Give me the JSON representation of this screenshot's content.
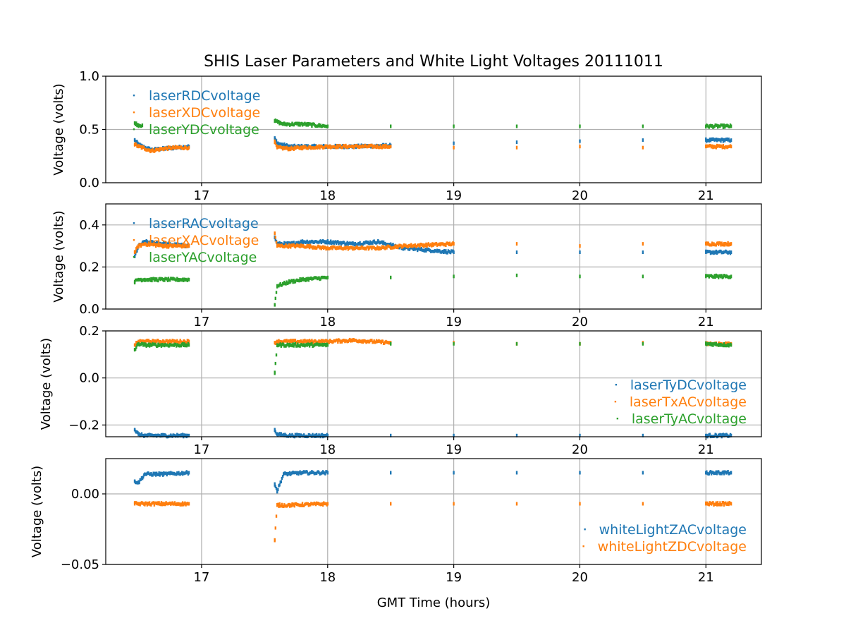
{
  "chart_data": {
    "type": "scatter",
    "title": "SHIS Laser Parameters and White Light Voltages 20111011",
    "xlabel": "GMT Time (hours)",
    "xlim": [
      16.24,
      21.44
    ],
    "xticks": [
      17,
      18,
      19,
      20,
      21
    ],
    "colors": {
      "blue": "#1f77b4",
      "orange": "#ff7f0e",
      "green": "#2ca02c"
    },
    "panels": [
      {
        "ylabel": "Voltage (volts)",
        "ylim": [
          0.0,
          1.0
        ],
        "yticks": [
          0.0,
          0.5,
          1.0
        ],
        "ytick_labels": [
          "0.0",
          "0.5",
          "1.0"
        ],
        "legend_location": "upper-left",
        "show_xticklabels": true,
        "series": [
          {
            "name": "laserRDCvoltage",
            "color": "#1f77b4",
            "x": [
              16.47,
              16.5,
              16.53,
              16.6,
              16.7,
              16.8,
              16.9,
              17.58,
              17.6,
              17.7,
              17.8,
              18.0,
              18.2,
              18.5,
              19.0,
              19.5,
              20.0,
              20.5,
              21.0,
              21.2
            ],
            "y": [
              0.4,
              0.36,
              0.34,
              0.31,
              0.32,
              0.33,
              0.34,
              0.42,
              0.37,
              0.34,
              0.34,
              0.34,
              0.34,
              0.35,
              0.37,
              0.38,
              0.39,
              0.4,
              0.4,
              0.4
            ]
          },
          {
            "name": "laserXDCvoltage",
            "color": "#ff7f0e",
            "x": [
              16.47,
              16.5,
              16.53,
              16.6,
              16.7,
              16.8,
              16.9,
              17.58,
              17.6,
              17.7,
              17.8,
              18.0,
              18.2,
              18.5,
              19.0,
              19.5,
              20.0,
              20.5,
              21.0,
              21.2
            ],
            "y": [
              0.36,
              0.34,
              0.33,
              0.3,
              0.32,
              0.33,
              0.33,
              0.38,
              0.33,
              0.32,
              0.33,
              0.34,
              0.34,
              0.34,
              0.33,
              0.33,
              0.34,
              0.33,
              0.34,
              0.34
            ]
          },
          {
            "name": "laserYDCvoltage",
            "color": "#2ca02c",
            "x": [
              16.47,
              16.5,
              16.53,
              17.58,
              17.65,
              17.8,
              18.0,
              18.5,
              19.0,
              19.5,
              20.0,
              20.5,
              21.0,
              21.2
            ],
            "y": [
              0.56,
              0.54,
              0.54,
              0.58,
              0.55,
              0.55,
              0.53,
              0.53,
              0.53,
              0.53,
              0.53,
              0.53,
              0.53,
              0.53
            ]
          }
        ]
      },
      {
        "ylabel": "Voltage (volts)",
        "ylim": [
          0.0,
          0.5
        ],
        "yticks": [
          0.0,
          0.2,
          0.4
        ],
        "ytick_labels": [
          "0.0",
          "0.2",
          "0.4"
        ],
        "legend_location": "upper-left",
        "show_xticklabels": true,
        "series": [
          {
            "name": "laserRACvoltage",
            "color": "#1f77b4",
            "x": [
              16.47,
              16.5,
              16.55,
              16.7,
              16.9,
              17.58,
              17.6,
              17.7,
              17.8,
              18.0,
              18.2,
              18.4,
              18.6,
              19.0,
              19.5,
              20.0,
              20.5,
              21.0,
              21.2
            ],
            "y": [
              0.25,
              0.3,
              0.32,
              0.31,
              0.3,
              0.34,
              0.31,
              0.31,
              0.32,
              0.32,
              0.31,
              0.32,
              0.29,
              0.27,
              0.27,
              0.27,
              0.27,
              0.27,
              0.27
            ]
          },
          {
            "name": "laserXACvoltage",
            "color": "#ff7f0e",
            "x": [
              16.47,
              16.5,
              16.55,
              16.7,
              16.9,
              17.58,
              17.6,
              17.7,
              17.8,
              18.0,
              18.2,
              18.4,
              18.6,
              19.0,
              19.5,
              20.0,
              20.5,
              21.0,
              21.2
            ],
            "y": [
              0.27,
              0.3,
              0.31,
              0.3,
              0.3,
              0.36,
              0.3,
              0.3,
              0.3,
              0.29,
              0.29,
              0.29,
              0.3,
              0.31,
              0.31,
              0.3,
              0.31,
              0.31,
              0.31
            ]
          },
          {
            "name": "laserYACvoltage",
            "color": "#2ca02c",
            "x": [
              16.47,
              16.5,
              16.55,
              16.7,
              16.9,
              17.58,
              17.6,
              17.7,
              17.8,
              18.0,
              18.5,
              19.0,
              19.5,
              20.0,
              20.5,
              21.0,
              21.2
            ],
            "y": [
              0.13,
              0.14,
              0.14,
              0.14,
              0.14,
              0.02,
              0.11,
              0.13,
              0.14,
              0.15,
              0.15,
              0.155,
              0.16,
              0.155,
              0.155,
              0.155,
              0.155
            ]
          }
        ]
      },
      {
        "ylabel": "Voltage (volts)",
        "ylim": [
          -0.25,
          0.2
        ],
        "yticks": [
          -0.2,
          0.0,
          0.2
        ],
        "ytick_labels": [
          "−0.2",
          "0.0",
          "0.2"
        ],
        "legend_location": "lower-right",
        "show_xticklabels": true,
        "series": [
          {
            "name": "laserTyDCvoltage",
            "color": "#1f77b4",
            "x": [
              16.47,
              16.5,
              16.55,
              16.7,
              16.9,
              17.58,
              17.6,
              17.7,
              18.0,
              18.5,
              19.0,
              19.5,
              20.0,
              20.5,
              21.0,
              21.2
            ],
            "y": [
              -0.22,
              -0.24,
              -0.245,
              -0.245,
              -0.245,
              -0.22,
              -0.24,
              -0.245,
              -0.245,
              -0.245,
              -0.245,
              -0.245,
              -0.245,
              -0.245,
              -0.245,
              -0.245
            ]
          },
          {
            "name": "laserTxACvoltage",
            "color": "#ff7f0e",
            "x": [
              16.47,
              16.5,
              16.55,
              16.7,
              16.9,
              17.58,
              17.6,
              17.7,
              18.0,
              18.2,
              18.5,
              19.0,
              19.5,
              20.0,
              20.5,
              21.0,
              21.2
            ],
            "y": [
              0.14,
              0.155,
              0.155,
              0.155,
              0.155,
              0.15,
              0.155,
              0.155,
              0.155,
              0.16,
              0.15,
              0.15,
              0.145,
              0.145,
              0.15,
              0.145,
              0.145
            ]
          },
          {
            "name": "laserTyACvoltage",
            "color": "#2ca02c",
            "x": [
              16.47,
              16.5,
              16.55,
              16.7,
              16.9,
              17.58,
              17.6,
              17.7,
              18.0,
              18.5,
              19.0,
              19.5,
              20.0,
              20.5,
              21.0,
              21.2
            ],
            "y": [
              0.12,
              0.145,
              0.14,
              0.14,
              0.14,
              0.02,
              0.14,
              0.14,
              0.14,
              0.145,
              0.145,
              0.145,
              0.145,
              0.145,
              0.145,
              0.14
            ]
          }
        ]
      },
      {
        "ylabel": "Voltage (volts)",
        "ylim": [
          -0.05,
          0.025
        ],
        "yticks": [
          -0.05,
          0.0
        ],
        "ytick_labels": [
          "−0.05",
          "0.00"
        ],
        "legend_location": "lower-right",
        "show_xticklabels": true,
        "series": [
          {
            "name": "whiteLightZACvoltage",
            "color": "#1f77b4",
            "x": [
              16.47,
              16.5,
              16.55,
              16.7,
              16.9,
              17.58,
              17.6,
              17.65,
              17.8,
              18.0,
              18.5,
              19.0,
              19.5,
              20.0,
              20.5,
              21.0,
              21.2
            ],
            "y": [
              0.009,
              0.008,
              0.014,
              0.014,
              0.015,
              0.007,
              0.002,
              0.014,
              0.015,
              0.015,
              0.015,
              0.015,
              0.015,
              0.015,
              0.015,
              0.015,
              0.015
            ]
          },
          {
            "name": "whiteLightZDCvoltage",
            "color": "#ff7f0e",
            "x": [
              16.47,
              16.5,
              16.55,
              16.7,
              16.9,
              17.58,
              17.6,
              17.7,
              18.0,
              18.5,
              19.0,
              19.5,
              20.0,
              20.5,
              21.0,
              21.2
            ],
            "y": [
              -0.007,
              -0.007,
              -0.007,
              -0.007,
              -0.007,
              -0.033,
              -0.008,
              -0.008,
              -0.007,
              -0.007,
              -0.007,
              -0.007,
              -0.007,
              -0.007,
              -0.007,
              -0.007
            ]
          }
        ]
      }
    ]
  }
}
